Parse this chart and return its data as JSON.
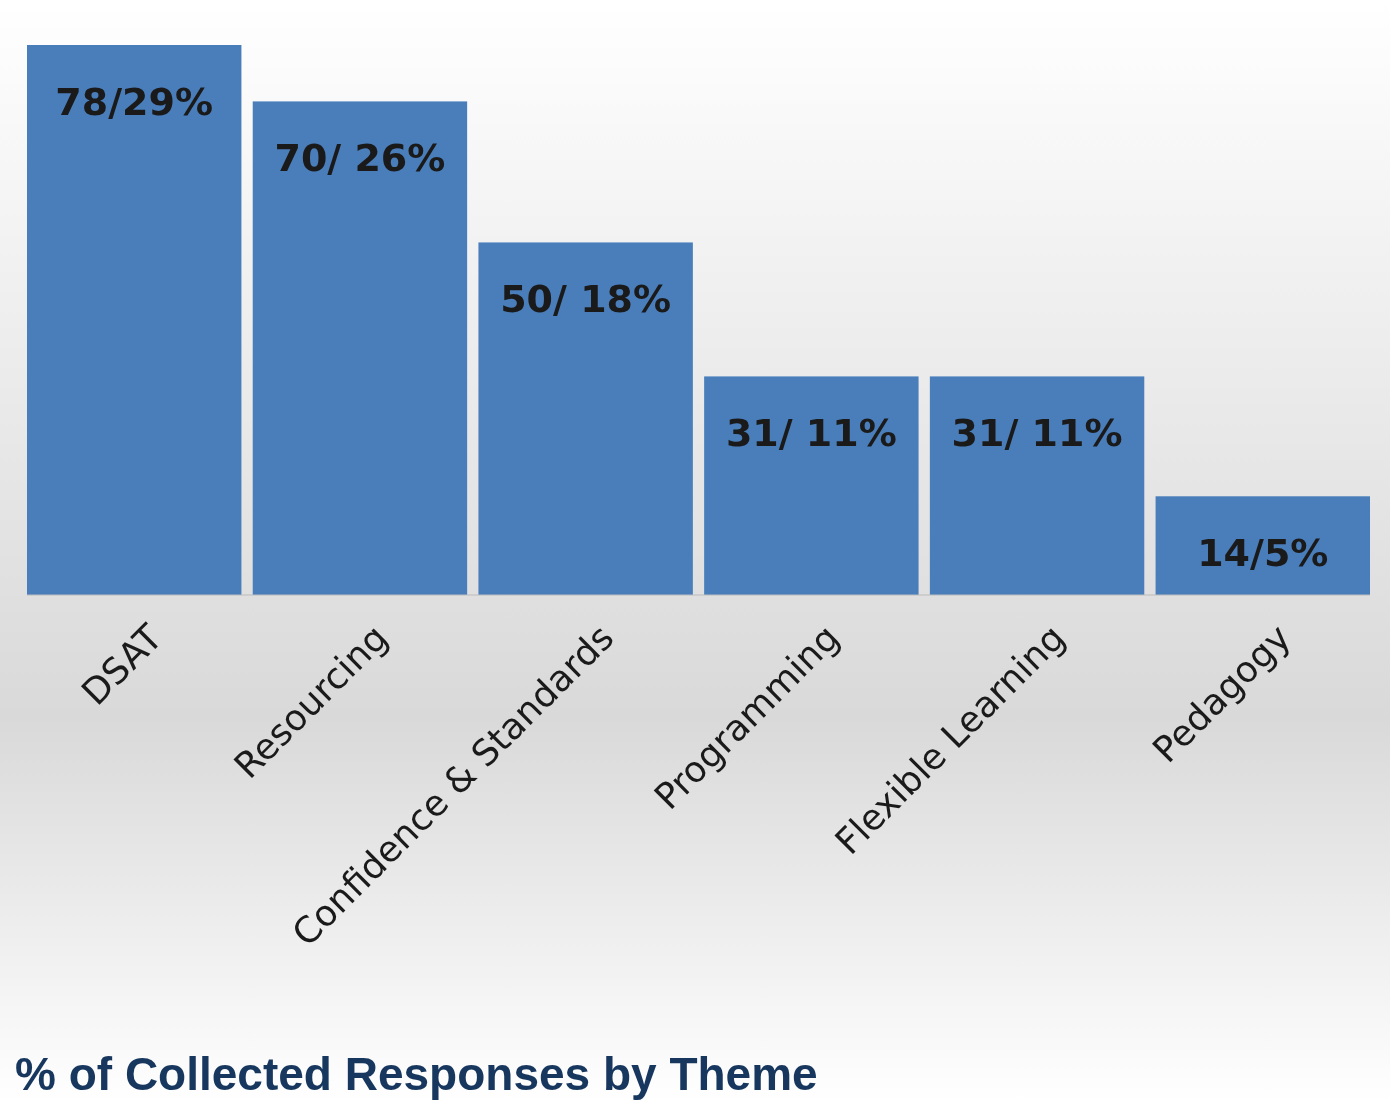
{
  "chart_data": {
    "type": "bar",
    "title": "% of Collected Responses by Theme",
    "categories": [
      "DSAT",
      "Resourcing",
      "Confidence & Standards",
      "Programming",
      "Flexible Learning",
      "Pedagogy"
    ],
    "values": [
      78,
      70,
      50,
      31,
      31,
      14
    ],
    "value_labels": [
      "78/29%",
      "70/ 26%",
      "50/ 18%",
      "31/ 11%",
      "31/ 11%",
      "14/5%"
    ],
    "color": "#4a7ebb"
  }
}
